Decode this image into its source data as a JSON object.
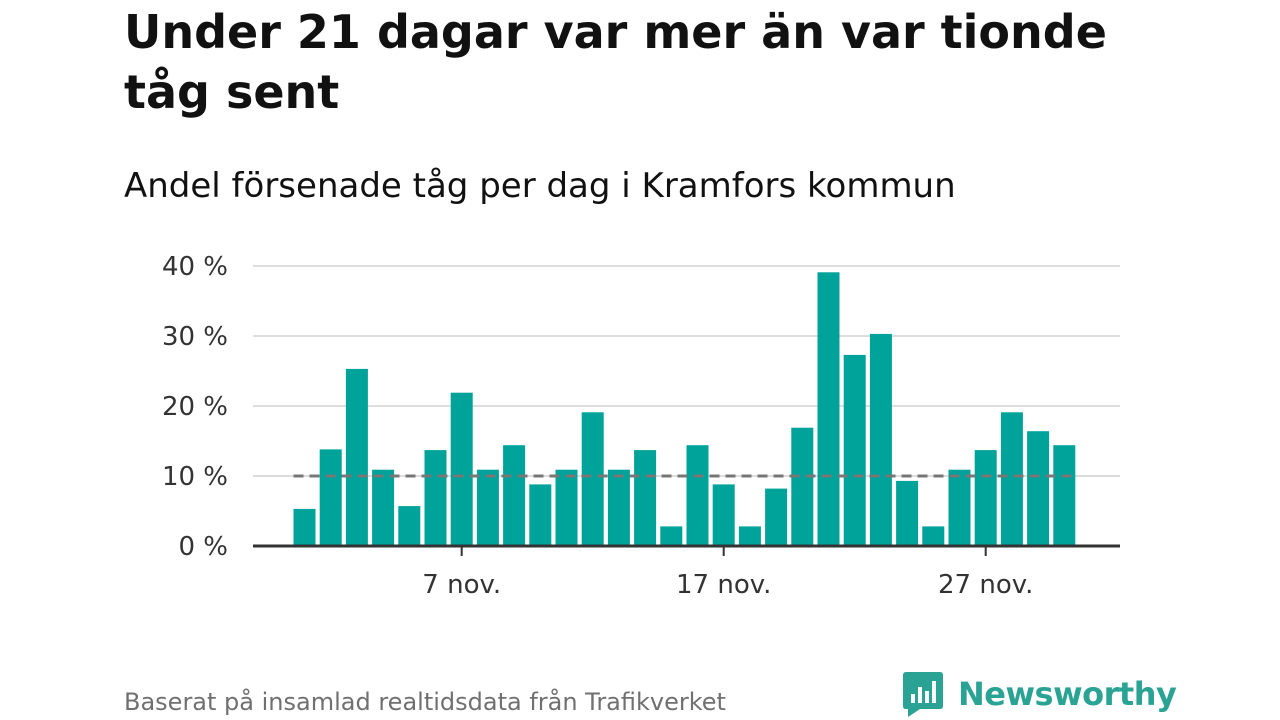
{
  "title": "Under 21 dagar var mer än var tionde tåg sent",
  "subtitle": "Andel försenade tåg per dag i Kramfors kommun",
  "source": "Baserat på insamlad realtidsdata från Trafikverket",
  "brand": {
    "name": "Newsworthy",
    "icon": "newsworthy-logo-icon",
    "color": "#2aa394"
  },
  "colors": {
    "bar": "#00a39a",
    "grid": "#dddddd",
    "axis": "#333333",
    "reference": "#777777"
  },
  "chart_data": {
    "type": "bar",
    "title": "Under 21 dagar var mer än var tionde tåg sent",
    "subtitle": "Andel försenade tåg per dag i Kramfors kommun",
    "x_tick_labels": [
      "7 nov.",
      "17 nov.",
      "27 nov."
    ],
    "x_ticks": [
      7,
      17,
      27
    ],
    "x": [
      1,
      2,
      3,
      4,
      5,
      6,
      7,
      8,
      9,
      10,
      11,
      12,
      13,
      14,
      15,
      16,
      17,
      18,
      19,
      20,
      21,
      22,
      23,
      24,
      25,
      26,
      27,
      28,
      29,
      30
    ],
    "values": [
      5.3,
      13.8,
      25.3,
      10.9,
      5.7,
      13.7,
      21.9,
      10.9,
      14.4,
      8.8,
      10.9,
      19.1,
      10.9,
      13.7,
      2.8,
      14.4,
      8.8,
      2.8,
      8.2,
      16.9,
      39.1,
      27.3,
      30.3,
      9.3,
      2.8,
      10.9,
      13.7,
      19.1,
      16.4,
      14.4
    ],
    "y_tick_labels": [
      "0 %",
      "10 %",
      "20 %",
      "30 %",
      "40 %"
    ],
    "y_ticks": [
      0,
      10,
      20,
      30,
      40
    ],
    "ylim": [
      0,
      40
    ],
    "reference_line": 10,
    "grid": true,
    "xlabel": "",
    "ylabel": ""
  }
}
